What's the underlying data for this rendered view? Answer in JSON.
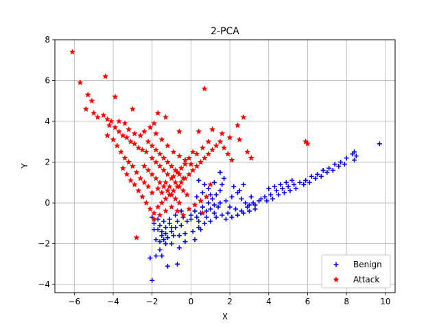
{
  "chart_data": {
    "type": "scatter",
    "title": "2-PCA",
    "xlabel": "X",
    "ylabel": "Y",
    "xlim": [
      -7,
      10.5
    ],
    "ylim": [
      -4.4,
      8
    ],
    "xticks": [
      -6,
      -4,
      -2,
      0,
      2,
      4,
      6,
      8,
      10
    ],
    "yticks": [
      -4,
      -2,
      0,
      2,
      4,
      6,
      8
    ],
    "grid": true,
    "legend_position": "lower-right",
    "series": [
      {
        "name": "Benign",
        "marker": "plus",
        "color": "#0000ff",
        "points": [
          [
            -2.0,
            -0.7
          ],
          [
            -1.9,
            -1.0
          ],
          [
            -1.7,
            -1.3
          ],
          [
            -1.5,
            -1.6
          ],
          [
            -1.3,
            -1.5
          ],
          [
            -1.0,
            -1.4
          ],
          [
            -0.8,
            -1.2
          ],
          [
            -0.5,
            -1.1
          ],
          [
            -0.2,
            -0.9
          ],
          [
            0.0,
            -0.8
          ],
          [
            0.3,
            -0.7
          ],
          [
            0.5,
            -0.5
          ],
          [
            0.8,
            -0.4
          ],
          [
            1.0,
            -0.3
          ],
          [
            1.2,
            -0.1
          ],
          [
            1.5,
            0.0
          ],
          [
            1.8,
            0.1
          ],
          [
            2.0,
            -0.2
          ],
          [
            2.3,
            -0.3
          ],
          [
            2.6,
            -0.4
          ],
          [
            2.9,
            -0.2
          ],
          [
            3.2,
            0.0
          ],
          [
            3.5,
            0.1
          ],
          [
            3.8,
            0.3
          ],
          [
            4.1,
            0.4
          ],
          [
            4.4,
            0.6
          ],
          [
            4.7,
            0.7
          ],
          [
            5.0,
            0.8
          ],
          [
            5.3,
            0.9
          ],
          [
            5.6,
            1.0
          ],
          [
            5.9,
            1.1
          ],
          [
            6.2,
            1.3
          ],
          [
            6.5,
            1.4
          ],
          [
            6.8,
            1.6
          ],
          [
            7.1,
            1.7
          ],
          [
            7.4,
            1.9
          ],
          [
            7.7,
            2.0
          ],
          [
            8.0,
            2.2
          ],
          [
            8.3,
            2.4
          ],
          [
            8.5,
            2.3
          ],
          [
            8.4,
            2.1
          ],
          [
            8.4,
            2.5
          ],
          [
            9.7,
            2.9
          ],
          [
            -2.0,
            -3.8
          ],
          [
            -2.1,
            -2.7
          ],
          [
            -1.8,
            -2.6
          ],
          [
            -1.5,
            -2.6
          ],
          [
            -1.2,
            -3.1
          ],
          [
            -0.7,
            -3.0
          ],
          [
            -1.6,
            -2.3
          ],
          [
            -1.3,
            -2.0
          ],
          [
            -1.0,
            -2.0
          ],
          [
            -0.6,
            -2.2
          ],
          [
            -0.3,
            -1.9
          ],
          [
            0.2,
            -1.8
          ],
          [
            0.5,
            -1.3
          ],
          [
            -1.8,
            -1.8
          ],
          [
            -1.6,
            -1.9
          ],
          [
            -1.4,
            -1.8
          ],
          [
            -1.2,
            -1.7
          ],
          [
            -0.9,
            -1.6
          ],
          [
            -0.6,
            -1.6
          ],
          [
            -0.3,
            -1.5
          ],
          [
            0.1,
            -1.4
          ],
          [
            0.4,
            -1.2
          ],
          [
            0.7,
            -1.0
          ],
          [
            1.0,
            -0.9
          ],
          [
            1.3,
            -0.7
          ],
          [
            1.6,
            -0.6
          ],
          [
            1.9,
            -0.5
          ],
          [
            -1.9,
            -1.3
          ],
          [
            -1.6,
            -1.1
          ],
          [
            -1.3,
            -1.2
          ],
          [
            -1.1,
            -1.0
          ],
          [
            -0.7,
            -0.9
          ],
          [
            -0.4,
            -0.7
          ],
          [
            0.0,
            -0.6
          ],
          [
            0.2,
            -0.4
          ],
          [
            0.6,
            -0.2
          ],
          [
            0.9,
            0.0
          ],
          [
            1.1,
            0.2
          ],
          [
            1.3,
            0.4
          ],
          [
            1.5,
            0.6
          ],
          [
            1.6,
            0.9
          ],
          [
            1.7,
            1.2
          ],
          [
            1.5,
            1.5
          ],
          [
            1.2,
            1.0
          ],
          [
            0.9,
            0.7
          ],
          [
            0.6,
            0.5
          ],
          [
            0.3,
            0.3
          ],
          [
            2.1,
            0.3
          ],
          [
            2.4,
            0.5
          ],
          [
            2.2,
            0.8
          ],
          [
            2.6,
            0.2
          ],
          [
            2.8,
            0.0
          ],
          [
            3.0,
            -0.1
          ],
          [
            3.3,
            -0.1
          ],
          [
            3.6,
            0.2
          ],
          [
            3.9,
            0.1
          ],
          [
            4.2,
            0.2
          ],
          [
            4.5,
            0.4
          ],
          [
            4.8,
            0.5
          ],
          [
            5.1,
            0.6
          ],
          [
            5.4,
            0.7
          ],
          [
            5.8,
            0.9
          ],
          [
            6.1,
            1.0
          ],
          [
            6.4,
            1.2
          ],
          [
            6.7,
            1.3
          ],
          [
            7.0,
            1.5
          ],
          [
            7.3,
            1.6
          ],
          [
            7.6,
            1.8
          ],
          [
            7.9,
            1.9
          ],
          [
            4.0,
            0.7
          ],
          [
            4.3,
            0.8
          ],
          [
            4.6,
            0.9
          ],
          [
            4.9,
            1.0
          ],
          [
            5.2,
            1.1
          ],
          [
            2.5,
            0.6
          ],
          [
            2.7,
            0.9
          ],
          [
            3.1,
            0.3
          ],
          [
            1.8,
            -0.8
          ],
          [
            2.1,
            -0.7
          ],
          [
            2.4,
            -0.6
          ],
          [
            2.7,
            -0.5
          ],
          [
            3.0,
            -0.4
          ],
          [
            3.3,
            -0.3
          ],
          [
            -0.5,
            -0.4
          ],
          [
            -0.8,
            -0.6
          ],
          [
            -1.1,
            -0.8
          ],
          [
            -1.4,
            -0.9
          ],
          [
            -1.7,
            -0.8
          ],
          [
            -1.5,
            -1.4
          ],
          [
            -1.0,
            -1.2
          ],
          [
            0.4,
            -0.9
          ],
          [
            0.8,
            -0.7
          ],
          [
            1.2,
            -0.5
          ],
          [
            1.4,
            -0.2
          ],
          [
            1.0,
            0.4
          ],
          [
            0.7,
            0.9
          ],
          [
            0.4,
            1.1
          ]
        ]
      },
      {
        "name": "Attack",
        "marker": "star",
        "color": "#ff0000",
        "points": [
          [
            -6.1,
            7.4
          ],
          [
            -5.7,
            5.9
          ],
          [
            -5.3,
            5.3
          ],
          [
            -5.1,
            5.0
          ],
          [
            -5.4,
            4.6
          ],
          [
            -5.0,
            4.4
          ],
          [
            -4.8,
            4.2
          ],
          [
            -4.5,
            4.3
          ],
          [
            -4.3,
            4.1
          ],
          [
            -4.1,
            4.0
          ],
          [
            -4.2,
            3.8
          ],
          [
            -3.9,
            3.7
          ],
          [
            -3.7,
            3.5
          ],
          [
            -3.5,
            3.3
          ],
          [
            -3.3,
            3.2
          ],
          [
            -3.1,
            3.0
          ],
          [
            -2.9,
            2.9
          ],
          [
            -2.7,
            2.7
          ],
          [
            -2.5,
            2.6
          ],
          [
            -2.3,
            2.5
          ],
          [
            -4.4,
            6.2
          ],
          [
            -3.9,
            5.2
          ],
          [
            -3.0,
            4.6
          ],
          [
            -1.7,
            4.4
          ],
          [
            -1.3,
            4.2
          ],
          [
            -0.6,
            3.5
          ],
          [
            0.4,
            3.5
          ],
          [
            0.7,
            5.6
          ],
          [
            1.1,
            3.6
          ],
          [
            1.6,
            3.4
          ],
          [
            2.0,
            3.2
          ],
          [
            2.4,
            3.8
          ],
          [
            2.7,
            4.2
          ],
          [
            2.5,
            3.1
          ],
          [
            2.9,
            2.5
          ],
          [
            3.1,
            2.2
          ],
          [
            5.9,
            3.0
          ],
          [
            6.0,
            2.9
          ],
          [
            -4.3,
            3.3
          ],
          [
            -4.0,
            3.1
          ],
          [
            -3.8,
            2.8
          ],
          [
            -3.6,
            2.5
          ],
          [
            -3.4,
            2.2
          ],
          [
            -3.2,
            2.0
          ],
          [
            -3.0,
            1.8
          ],
          [
            -2.8,
            1.5
          ],
          [
            -2.6,
            1.2
          ],
          [
            -2.4,
            1.0
          ],
          [
            -2.2,
            0.8
          ],
          [
            -2.0,
            0.5
          ],
          [
            -3.5,
            1.7
          ],
          [
            -3.3,
            1.4
          ],
          [
            -3.1,
            1.1
          ],
          [
            -2.9,
            0.9
          ],
          [
            -2.7,
            0.6
          ],
          [
            -2.5,
            0.3
          ],
          [
            -2.3,
            0.0
          ],
          [
            -2.1,
            -0.3
          ],
          [
            -1.9,
            -0.5
          ],
          [
            -1.7,
            -0.2
          ],
          [
            -2.8,
            -1.7
          ],
          [
            -1.5,
            0.0
          ],
          [
            -1.3,
            0.2
          ],
          [
            -1.1,
            0.4
          ],
          [
            -0.9,
            0.6
          ],
          [
            -0.7,
            0.8
          ],
          [
            -0.5,
            1.0
          ],
          [
            -0.3,
            1.2
          ],
          [
            -0.1,
            1.4
          ],
          [
            0.1,
            1.6
          ],
          [
            0.3,
            1.8
          ],
          [
            0.5,
            2.0
          ],
          [
            0.7,
            2.2
          ],
          [
            0.9,
            2.4
          ],
          [
            1.1,
            2.6
          ],
          [
            1.3,
            2.8
          ],
          [
            1.5,
            3.0
          ],
          [
            1.7,
            2.7
          ],
          [
            1.9,
            2.4
          ],
          [
            2.1,
            2.1
          ],
          [
            -2.0,
            2.2
          ],
          [
            -1.8,
            2.0
          ],
          [
            -1.6,
            1.8
          ],
          [
            -1.4,
            1.6
          ],
          [
            -1.2,
            1.4
          ],
          [
            -1.0,
            1.2
          ],
          [
            -0.8,
            1.0
          ],
          [
            -0.6,
            0.8
          ],
          [
            -0.4,
            0.6
          ],
          [
            -0.2,
            0.4
          ],
          [
            -2.2,
            3.0
          ],
          [
            -2.0,
            2.8
          ],
          [
            -1.8,
            2.6
          ],
          [
            -1.6,
            2.4
          ],
          [
            -1.4,
            2.2
          ],
          [
            -1.2,
            2.0
          ],
          [
            -1.0,
            1.8
          ],
          [
            -0.8,
            1.6
          ],
          [
            -0.6,
            1.4
          ],
          [
            -0.4,
            1.2
          ],
          [
            -2.4,
            1.8
          ],
          [
            -2.2,
            1.6
          ],
          [
            -2.0,
            1.4
          ],
          [
            -1.8,
            1.2
          ],
          [
            -1.6,
            1.0
          ],
          [
            -1.4,
            0.8
          ],
          [
            -1.2,
            0.6
          ],
          [
            -1.0,
            0.4
          ],
          [
            -0.8,
            0.2
          ],
          [
            -0.6,
            0.0
          ],
          [
            -1.8,
            3.4
          ],
          [
            -1.5,
            3.1
          ],
          [
            -1.2,
            2.8
          ],
          [
            -0.9,
            2.5
          ],
          [
            -0.6,
            2.3
          ],
          [
            -0.3,
            2.1
          ],
          [
            0.0,
            1.9
          ],
          [
            0.3,
            2.4
          ],
          [
            0.6,
            2.7
          ],
          [
            0.9,
            3.0
          ],
          [
            -1.9,
            -0.8
          ],
          [
            -1.6,
            -0.6
          ],
          [
            -1.3,
            -0.4
          ],
          [
            -1.0,
            -0.2
          ],
          [
            -0.7,
            -0.4
          ],
          [
            -0.4,
            -0.6
          ],
          [
            -0.1,
            -0.3
          ],
          [
            0.2,
            -0.1
          ],
          [
            0.5,
            0.1
          ],
          [
            0.8,
            0.3
          ],
          [
            -1.7,
            0.7
          ],
          [
            -1.5,
            0.5
          ],
          [
            -1.3,
            1.0
          ],
          [
            -1.1,
            0.8
          ],
          [
            -0.9,
            1.3
          ],
          [
            -0.7,
            1.5
          ],
          [
            -0.5,
            1.7
          ],
          [
            -0.3,
            1.9
          ],
          [
            -0.1,
            2.2
          ],
          [
            0.1,
            2.5
          ],
          [
            -3.7,
            4.0
          ],
          [
            -3.4,
            3.9
          ],
          [
            -3.2,
            3.6
          ],
          [
            -2.9,
            3.4
          ],
          [
            -2.6,
            3.3
          ],
          [
            -2.4,
            3.5
          ],
          [
            -2.1,
            3.7
          ],
          [
            -1.9,
            3.9
          ],
          [
            0.6,
            -0.5
          ],
          [
            1.0,
            0.9
          ]
        ]
      }
    ]
  }
}
